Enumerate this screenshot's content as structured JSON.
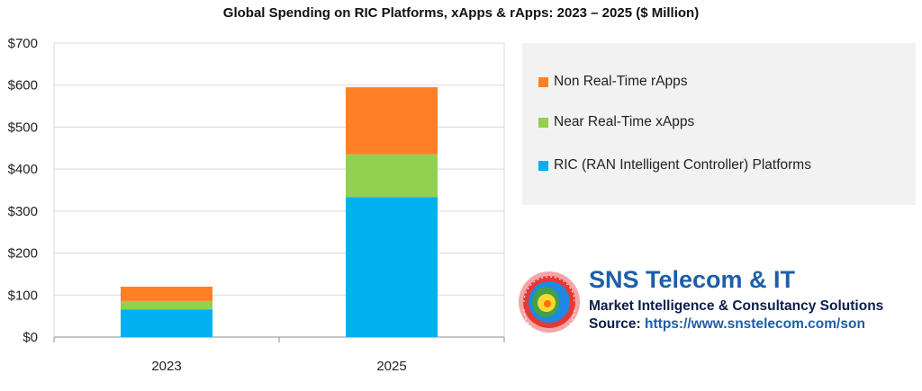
{
  "chart_data": {
    "type": "bar",
    "stacked": true,
    "title": "Global Spending on RIC Platforms, xApps & rApps: 2023 – 2025 ($ Million)",
    "categories": [
      "2023",
      "2025"
    ],
    "series": [
      {
        "name": "RIC (RAN Intelligent Controller) Platforms",
        "color": "#00b0f0",
        "values": [
          66,
          333
        ]
      },
      {
        "name": "Near Real-Time xApps",
        "color": "#92d050",
        "values": [
          20,
          102
        ]
      },
      {
        "name": "Non Real-Time rApps",
        "color": "#ff7f27",
        "values": [
          34,
          160
        ]
      }
    ],
    "ylim": [
      0,
      700
    ],
    "yticks": [
      "$0",
      "$100",
      "$200",
      "$300",
      "$400",
      "$500",
      "$600",
      "$700"
    ],
    "xlabel": "",
    "ylabel": "",
    "grid": true,
    "legend_position": "right"
  },
  "legend_order": [
    2,
    1,
    0
  ],
  "brand": {
    "name": "SNS Telecom & IT",
    "tagline": "Market Intelligence & Consultancy Solutions",
    "source_label": "Source:",
    "source_url": "https://www.snstelecom.com/son",
    "logo_icon": "globe-logo-icon"
  }
}
